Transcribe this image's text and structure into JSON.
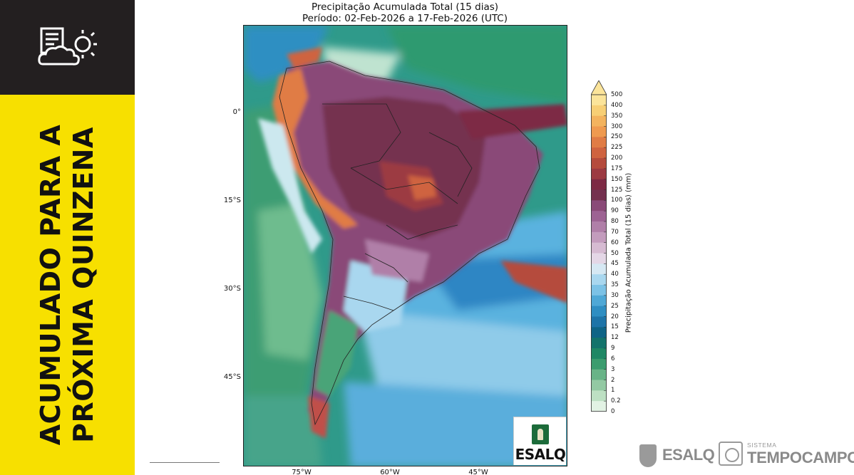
{
  "sidebar": {
    "icon": "weather-report-icon",
    "vertical_line1": "ACUMULADO PARA A",
    "vertical_line2": "PRÓXIMA QUINZENA",
    "top_color": "#231f20",
    "accent_color": "#f7e000"
  },
  "map": {
    "title_line1": "Precipitação Acumulada Total (15 dias)",
    "title_line2": "Período: 02-Feb-2026 a 17-Feb-2026 (UTC)",
    "lat_labels": [
      "0°",
      "15°S",
      "30°S",
      "45°S"
    ],
    "lon_labels": [
      "75°W",
      "60°W",
      "45°W"
    ],
    "logo_text": "ESALQ"
  },
  "colorbar": {
    "label": "Precipitação Acumulada Total (15 dias) (mm)",
    "ticks": [
      "500",
      "400",
      "350",
      "300",
      "250",
      "225",
      "200",
      "175",
      "150",
      "125",
      "100",
      "90",
      "80",
      "70",
      "60",
      "50",
      "45",
      "40",
      "35",
      "30",
      "25",
      "20",
      "15",
      "12",
      "9",
      "6",
      "3",
      "2",
      "1",
      "0.2",
      "0"
    ],
    "colors": [
      "#fbe49a",
      "#f7cf75",
      "#f3b35e",
      "#ef9a4f",
      "#e07c45",
      "#cf6340",
      "#b54b3d",
      "#9c3a42",
      "#7d2a44",
      "#74314f",
      "#8a4a78",
      "#9d6393",
      "#b07fa8",
      "#c39cbd",
      "#d6bbd2",
      "#e4d7e6",
      "#d6e8f3",
      "#a9d7ef",
      "#7cc2e6",
      "#4fa8d6",
      "#2f8ec2",
      "#1e74a8",
      "#0f6486",
      "#13736b",
      "#1f8764",
      "#3b9c6e",
      "#68b387",
      "#93c9a3",
      "#bde0c3",
      "#e2f2e4"
    ]
  },
  "footer": {
    "esalq_logo": "ESALQ",
    "tc_small": "SISTEMA",
    "tc_big": "TEMPOCAMPO"
  }
}
